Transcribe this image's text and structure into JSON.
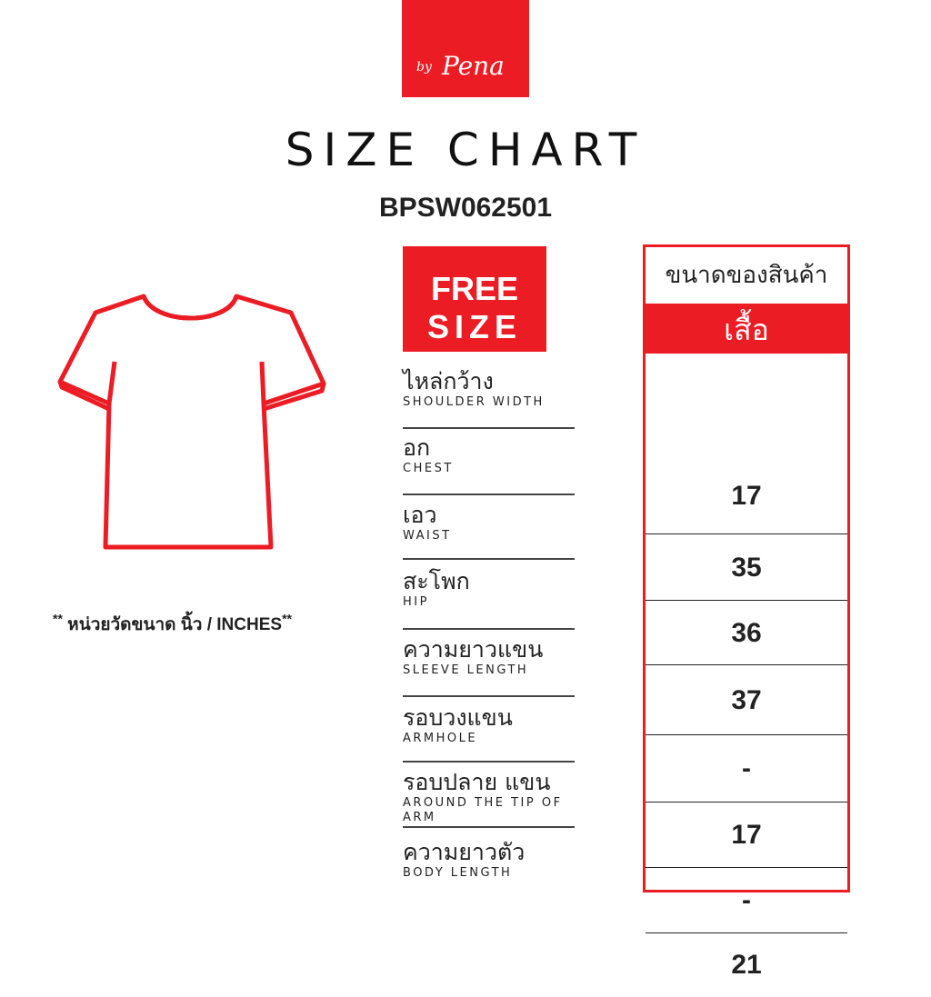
{
  "brand": {
    "by": "by",
    "name": "Pena",
    "color": "#ec1c24"
  },
  "title": "SIZE CHART",
  "product_code": "BPSW062501",
  "size_badge": {
    "line1": "FREE",
    "line2": "SIZE"
  },
  "illustration": "t-shirt-outline",
  "note": {
    "prefix": "**",
    "text": " หน่วยวัดขนาด  นิ้ว / INCHES",
    "suffix": "**"
  },
  "table": {
    "header": "ขนาดของสินค้า",
    "subheader": "เสื้อ"
  },
  "rows": [
    {
      "th": "ไหล่กว้าง",
      "en": "SHOULDER WIDTH",
      "value": "17"
    },
    {
      "th": "อก",
      "en": "CHEST",
      "value": "35"
    },
    {
      "th": "เอว",
      "en": "WAIST",
      "value": "36"
    },
    {
      "th": "สะโพก",
      "en": "HIP",
      "value": "37"
    },
    {
      "th": "ความยาวแขน",
      "en": "SLEEVE LENGTH",
      "value": "-"
    },
    {
      "th": "รอบวงแขน",
      "en": "ARMHOLE",
      "value": "17"
    },
    {
      "th": "รอบปลาย แขน",
      "en": "AROUND THE TIP OF ARM",
      "value": "-"
    },
    {
      "th": "ความยาวตัว",
      "en": "BODY LENGTH",
      "value": "21"
    }
  ]
}
